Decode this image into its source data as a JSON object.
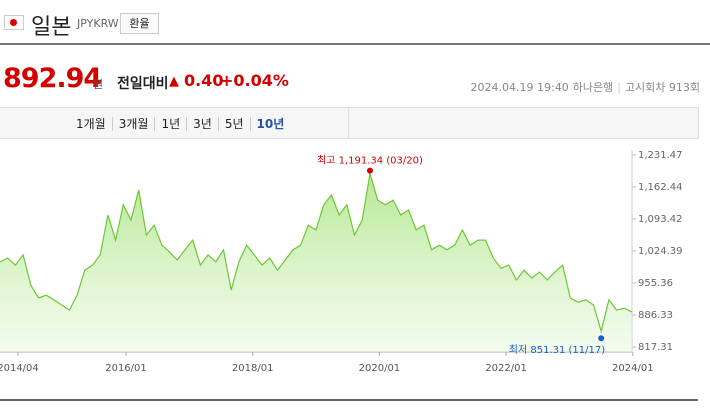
{
  "header": {
    "country": "일본",
    "code": "JPYKRW",
    "button": "환율"
  },
  "quote": {
    "price": "892.94",
    "unit": "원",
    "change_label": "전일대비",
    "change": "0.40",
    "change_pct": "+0.04%"
  },
  "meta": {
    "datetime": "2024.04.19 19:40",
    "bank": "하나은행",
    "round": "고시회차 913회"
  },
  "tabs": [
    "1개월",
    "3개월",
    "1년",
    "3년",
    "5년",
    "10년"
  ],
  "selected_tab": 5,
  "chart_data": {
    "type": "area",
    "color": "#6cc832",
    "values": [
      1001,
      1009,
      994,
      1016,
      951,
      923,
      929,
      919,
      908,
      897,
      929,
      983,
      994,
      1016,
      1102,
      1048,
      1124,
      1091,
      1156,
      1059,
      1080,
      1037,
      1022,
      1005,
      1027,
      1048,
      994,
      1016,
      1001,
      1027,
      940,
      1001,
      1037,
      1016,
      994,
      1009,
      983,
      1005,
      1027,
      1037,
      1080,
      1070,
      1124,
      1145,
      1102,
      1124,
      1059,
      1091,
      1191.34,
      1134,
      1124,
      1134,
      1102,
      1113,
      1070,
      1080,
      1027,
      1037,
      1027,
      1037,
      1070,
      1037,
      1048,
      1048,
      1009,
      987,
      994,
      962,
      983,
      966,
      979,
      962,
      979,
      994,
      923,
      914,
      919,
      908,
      851.31,
      919,
      897,
      901,
      892.94
    ],
    "xtick_labels": [
      "2014/04",
      "2016/01",
      "2018/01",
      "2020/01",
      "2022/01",
      "2024/01"
    ],
    "ylim": [
      817.31,
      1231.47
    ],
    "yticks": [
      {
        "value": 1231.47,
        "label": "1,231.47"
      },
      {
        "value": 1162.44,
        "label": "1,162.44"
      },
      {
        "value": 1093.42,
        "label": "1,093.42"
      },
      {
        "value": 1024.39,
        "label": "1,024.39"
      },
      955.36,
      886.33,
      817.31
    ],
    "annotations": [
      {
        "text": "최고 1,191.34 (03/20)",
        "index": 48,
        "color": "#d40000"
      },
      {
        "text": "최저 851.31 (11/17)",
        "index": 78,
        "color": "#1a5fc8"
      }
    ]
  }
}
